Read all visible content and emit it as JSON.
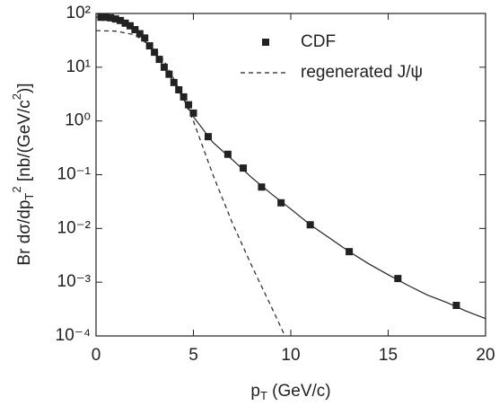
{
  "chart_data": {
    "type": "line",
    "xlabel": [
      "p",
      "T",
      " (GeV/c)"
    ],
    "ylabel": [
      "Br dσ/dp",
      "T",
      "2",
      " [nb/(GeV/c",
      "2",
      ")]"
    ],
    "xlim": [
      0,
      20
    ],
    "xticks": [
      0,
      5,
      10,
      15,
      20
    ],
    "ylim": [
      0.0001,
      100
    ],
    "log_y": true,
    "yticks": [
      {
        "value": 100,
        "label": "10²"
      },
      {
        "value": 10,
        "label": "10¹"
      },
      {
        "value": 1,
        "label": "10⁰"
      },
      {
        "value": 0.1,
        "label": "10⁻¹"
      },
      {
        "value": 0.01,
        "label": "10⁻²"
      },
      {
        "value": 0.001,
        "label": "10⁻³"
      },
      {
        "value": 0.0001,
        "label": "10⁻⁴"
      }
    ],
    "legend": "upper right",
    "series": [
      {
        "name": "CDF",
        "style": "markers",
        "color": "#222222",
        "x": [
          0.25,
          0.5,
          0.75,
          1.0,
          1.25,
          1.5,
          1.75,
          2.0,
          2.25,
          2.5,
          2.75,
          3.0,
          3.25,
          3.5,
          3.75,
          4.0,
          4.25,
          4.5,
          4.75,
          5.0,
          5.76,
          6.77,
          7.56,
          8.5,
          9.5,
          11,
          13,
          15.5,
          18.5
        ],
        "values": [
          85,
          85,
          83,
          79,
          74,
          66,
          59,
          50,
          42,
          35,
          25,
          19,
          14,
          10,
          7.4,
          5.2,
          3.8,
          2.8,
          2.0,
          1.4,
          0.51,
          0.24,
          0.133,
          0.059,
          0.03,
          0.0117,
          0.0037,
          0.00117,
          0.00037
        ]
      },
      {
        "style": "solid",
        "color": "#222222",
        "x": [
          0,
          1,
          2,
          3,
          4,
          5,
          6,
          7,
          8,
          9,
          10,
          11,
          12,
          13,
          14,
          15,
          16,
          17,
          18,
          19,
          20
        ],
        "values": [
          86,
          79,
          50,
          19,
          5.2,
          1.2,
          0.4,
          0.19,
          0.088,
          0.044,
          0.023,
          0.0117,
          0.0066,
          0.0037,
          0.0022,
          0.00138,
          0.00088,
          0.00058,
          0.00042,
          0.00029,
          0.00021
        ]
      },
      {
        "name": "regenerated J/ψ",
        "style": "dashed",
        "color": "#222222",
        "x": [
          0,
          1,
          2,
          3,
          3.5,
          4,
          4.5,
          5,
          6,
          7,
          8,
          9,
          9.7
        ],
        "values": [
          48,
          47,
          40,
          22,
          13,
          6,
          2.6,
          1.0,
          0.1,
          0.0126,
          0.002,
          0.00035,
          0.0001
        ]
      }
    ]
  }
}
